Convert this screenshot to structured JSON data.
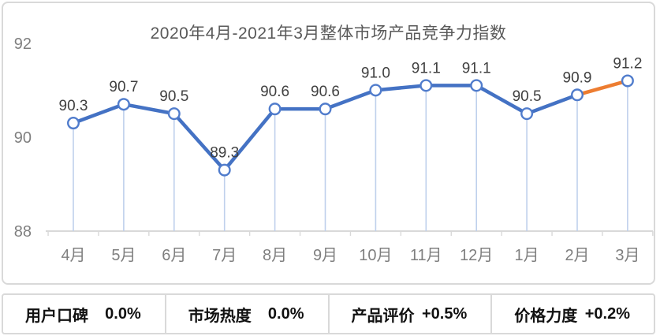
{
  "chart_data": {
    "type": "line",
    "title": "2020年4月-2021年3月整体市场产品竞争力指数",
    "categories": [
      "4月",
      "5月",
      "6月",
      "7月",
      "8月",
      "9月",
      "10月",
      "11月",
      "12月",
      "1月",
      "2月",
      "3月"
    ],
    "values": [
      90.3,
      90.7,
      90.5,
      89.3,
      90.6,
      90.6,
      91.0,
      91.1,
      91.1,
      90.5,
      90.9,
      91.2
    ],
    "data_labels": [
      "90.3",
      "90.7",
      "90.5",
      "89.3",
      "90.6",
      "90.6",
      "91.0",
      "91.1",
      "91.1",
      "90.5",
      "90.9",
      "91.2"
    ],
    "ylim": [
      88,
      92
    ],
    "yticks": [
      88,
      90,
      92
    ],
    "grid": false,
    "legend": "none",
    "colors": {
      "line": "#4472C4",
      "highlight_last_segment": "#ED7D31",
      "marker_fill": "#FFFFFF",
      "marker_stroke": "#507CCC",
      "drop_line": "#BFD0EC",
      "axis": "#D9D9D9",
      "data_label": "#404040",
      "tick_label": "#7F7F7F",
      "title": "#595959"
    }
  },
  "kpi_bar": {
    "items": [
      {
        "label": "用户口碑",
        "value": "0.0%"
      },
      {
        "label": "市场热度",
        "value": "0.0%"
      },
      {
        "label": "产品评价",
        "value": "+0.5%"
      },
      {
        "label": "价格力度",
        "value": "+0.2%"
      }
    ]
  }
}
